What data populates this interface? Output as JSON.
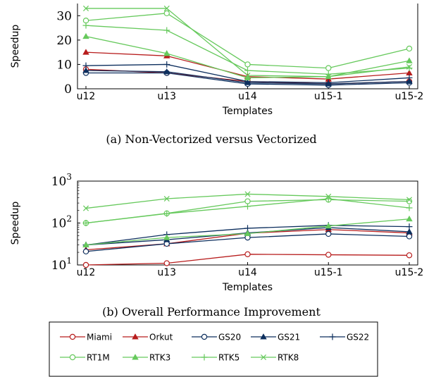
{
  "figure": {
    "caption_a": "(a) Non-Vectorized versus Vectorized",
    "caption_b": "(b) Overall Performance Improvement"
  },
  "series_styles": {
    "Miami": {
      "color": "#b71c1c",
      "marker": "circle"
    },
    "Orkut": {
      "color": "#b71c1c",
      "marker": "triangle"
    },
    "GS20": {
      "color": "#0d2f5e",
      "marker": "circle"
    },
    "GS21": {
      "color": "#0d2f5e",
      "marker": "triangle"
    },
    "GS22": {
      "color": "#0d2f5e",
      "marker": "plus"
    },
    "RT1M": {
      "color": "#66c95c",
      "marker": "circle"
    },
    "RTK3": {
      "color": "#66c95c",
      "marker": "triangle"
    },
    "RTK5": {
      "color": "#66c95c",
      "marker": "plus"
    },
    "RTK8": {
      "color": "#66c95c",
      "marker": "cross"
    }
  },
  "legend": {
    "placement": "bottom",
    "entries": [
      "Miami",
      "Orkut",
      "GS20",
      "GS21",
      "GS22",
      "RT1M",
      "RTK3",
      "RTK5",
      "RTK8"
    ]
  },
  "chart_data": [
    {
      "type": "line",
      "xlabel": "Templates",
      "ylabel": "Speedup",
      "categories": [
        "u12",
        "u13",
        "u14",
        "u15-1",
        "u15-2"
      ],
      "ylim": [
        0,
        35
      ],
      "yticks": [
        0,
        10,
        20,
        30
      ],
      "yscale": "linear",
      "grid": false,
      "series": [
        {
          "name": "Miami",
          "values": [
            8,
            6.5,
            3,
            2,
            3
          ]
        },
        {
          "name": "Orkut",
          "values": [
            15,
            13.5,
            5,
            4,
            6.5
          ]
        },
        {
          "name": "GS20",
          "values": [
            6.5,
            6.5,
            2,
            1.5,
            2.5
          ]
        },
        {
          "name": "GS21",
          "values": [
            7.5,
            7,
            2.5,
            2,
            3
          ]
        },
        {
          "name": "GS22",
          "values": [
            9.5,
            10,
            3,
            2.5,
            4.5
          ]
        },
        {
          "name": "RT1M",
          "values": [
            28,
            31,
            10,
            8.5,
            16.5
          ]
        },
        {
          "name": "RTK3",
          "values": [
            21.5,
            14.5,
            4.5,
            5,
            11.5
          ]
        },
        {
          "name": "RTK5",
          "values": [
            26,
            24,
            7.5,
            6,
            8.5
          ]
        },
        {
          "name": "RTK8",
          "values": [
            33,
            33,
            5.5,
            5,
            9
          ]
        }
      ]
    },
    {
      "type": "line",
      "xlabel": "Templates",
      "ylabel": "Speedup",
      "categories": [
        "u12",
        "u13",
        "u14",
        "u15-1",
        "u15-2"
      ],
      "ylim": [
        10,
        1000
      ],
      "yscale": "log",
      "yticks": [
        {
          "value": 10,
          "base": "10",
          "exp": "1"
        },
        {
          "value": 100,
          "base": "10",
          "exp": "2"
        },
        {
          "value": 1000,
          "base": "10",
          "exp": "3"
        }
      ],
      "grid": false,
      "series": [
        {
          "name": "Miami",
          "values": [
            10,
            11,
            18,
            17.5,
            17
          ]
        },
        {
          "name": "Orkut",
          "values": [
            23,
            32,
            57,
            70,
            58
          ]
        },
        {
          "name": "GS20",
          "values": [
            21,
            32,
            45,
            55,
            48
          ]
        },
        {
          "name": "GS21",
          "values": [
            30,
            40,
            58,
            78,
            62
          ]
        },
        {
          "name": "GS22",
          "values": [
            30,
            53,
            75,
            88,
            82
          ]
        },
        {
          "name": "RT1M",
          "values": [
            100,
            170,
            330,
            360,
            330
          ]
        },
        {
          "name": "RTK3",
          "values": [
            30,
            45,
            56,
            85,
            125
          ]
        },
        {
          "name": "RTK5",
          "values": [
            100,
            168,
            250,
            380,
            230
          ]
        },
        {
          "name": "RTK8",
          "values": [
            225,
            380,
            490,
            430,
            360
          ]
        }
      ]
    }
  ]
}
